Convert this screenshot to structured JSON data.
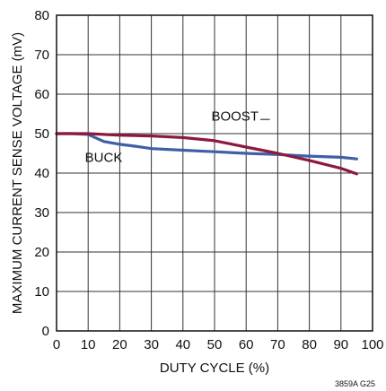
{
  "chart_data": {
    "type": "line",
    "xlabel": "DUTY CYCLE (%)",
    "ylabel": "MAXIMUM CURRENT SENSE VOLTAGE (mV)",
    "xlim": [
      0,
      100
    ],
    "ylim": [
      0,
      80
    ],
    "xticks": [
      "0",
      "10",
      "20",
      "30",
      "40",
      "50",
      "60",
      "70",
      "80",
      "90",
      "100"
    ],
    "yticks": [
      "0",
      "10",
      "20",
      "30",
      "40",
      "50",
      "60",
      "70",
      "80"
    ],
    "grid": true,
    "legend": "none",
    "figure_id": "3859A G25",
    "series": [
      {
        "name": "BUCK",
        "color": "#3f5fa8",
        "x": [
          0,
          5,
          10,
          15,
          20,
          25,
          30,
          40,
          50,
          60,
          70,
          80,
          90,
          95
        ],
        "y": [
          50,
          50,
          49.8,
          48,
          47.3,
          46.8,
          46.2,
          45.8,
          45.4,
          45,
          44.7,
          44.3,
          44,
          43.6
        ]
      },
      {
        "name": "BOOST",
        "color": "#8c1a3c",
        "x": [
          0,
          10,
          20,
          30,
          40,
          50,
          55,
          60,
          70,
          80,
          90,
          95
        ],
        "y": [
          50,
          50,
          49.6,
          49.4,
          49,
          48.2,
          47.4,
          46.6,
          45,
          43.2,
          41.2,
          39.8
        ]
      }
    ]
  }
}
